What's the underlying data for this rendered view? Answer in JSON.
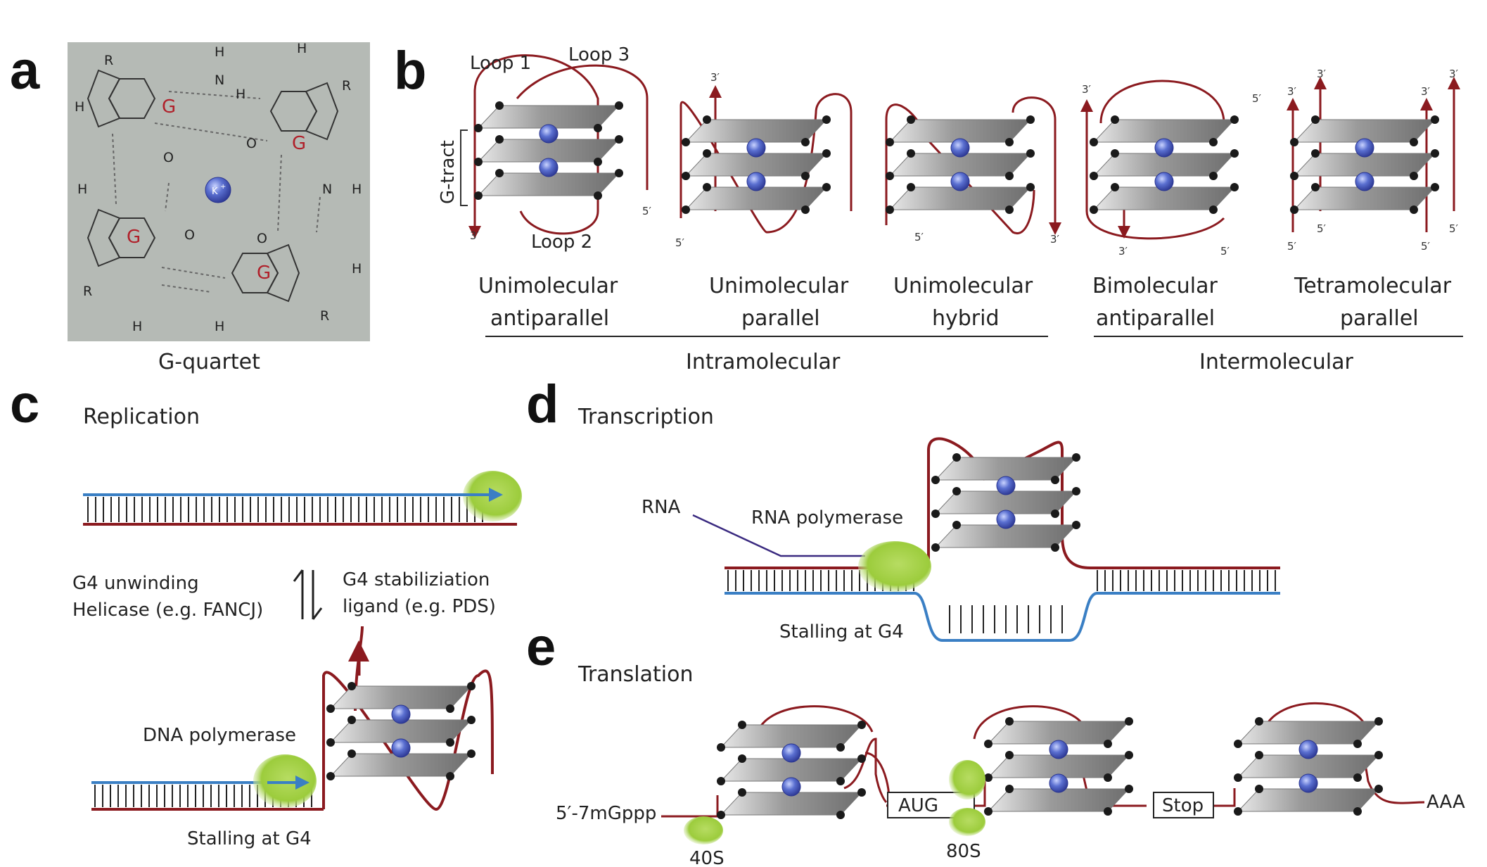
{
  "panels": {
    "a": {
      "letter": "a",
      "caption": "G-quartet",
      "guanine_label": "G",
      "ion": "K",
      "ion_charge": "+",
      "atoms": {
        "R": "R",
        "H": "H",
        "N": "N",
        "O": "O"
      }
    },
    "b": {
      "letter": "b",
      "labels": {
        "loop1": "Loop 1",
        "loop2": "Loop 2",
        "loop3": "Loop 3",
        "g_tract": "G-tract"
      },
      "ends": {
        "three": "3′",
        "five": "5′"
      },
      "structures": [
        {
          "line1": "Unimolecular",
          "line2": "antiparallel"
        },
        {
          "line1": "Unimolecular",
          "line2": "parallel"
        },
        {
          "line1": "Unimolecular",
          "line2": "hybrid"
        },
        {
          "line1": "Bimolecular",
          "line2": "antiparallel"
        },
        {
          "line1": "Tetramolecular",
          "line2": "parallel"
        }
      ],
      "groups": {
        "intra": "Intramolecular",
        "inter": "Intermolecular"
      }
    },
    "c": {
      "letter": "c",
      "title": "Replication",
      "left_note_1": "G4 unwinding",
      "left_note_2": "Helicase (e.g. FANCJ)",
      "right_note_1": "G4 stabiliziation",
      "right_note_2": "ligand (e.g. PDS)",
      "polymerase": "DNA polymerase",
      "stall": "Stalling at G4"
    },
    "d": {
      "letter": "d",
      "title": "Transcription",
      "rna": "RNA",
      "polymerase": "RNA polymerase",
      "stall": "Stalling at G4"
    },
    "e": {
      "letter": "e",
      "title": "Translation",
      "cap": "5′-7mGppp",
      "start_codon": "AUG",
      "stop_codon": "Stop",
      "tail": "AAA",
      "small_subunit": "40S",
      "ribosome": "80S"
    }
  },
  "colors": {
    "strand_red": "#8b1a1f",
    "strand_blue": "#3a7fc4",
    "polymerase_green": "#9ccc3c",
    "ion_blue": "#4a5fc0",
    "quartet_gray": "#a8a8a8",
    "panel_a_bg": "#b5bab5"
  }
}
